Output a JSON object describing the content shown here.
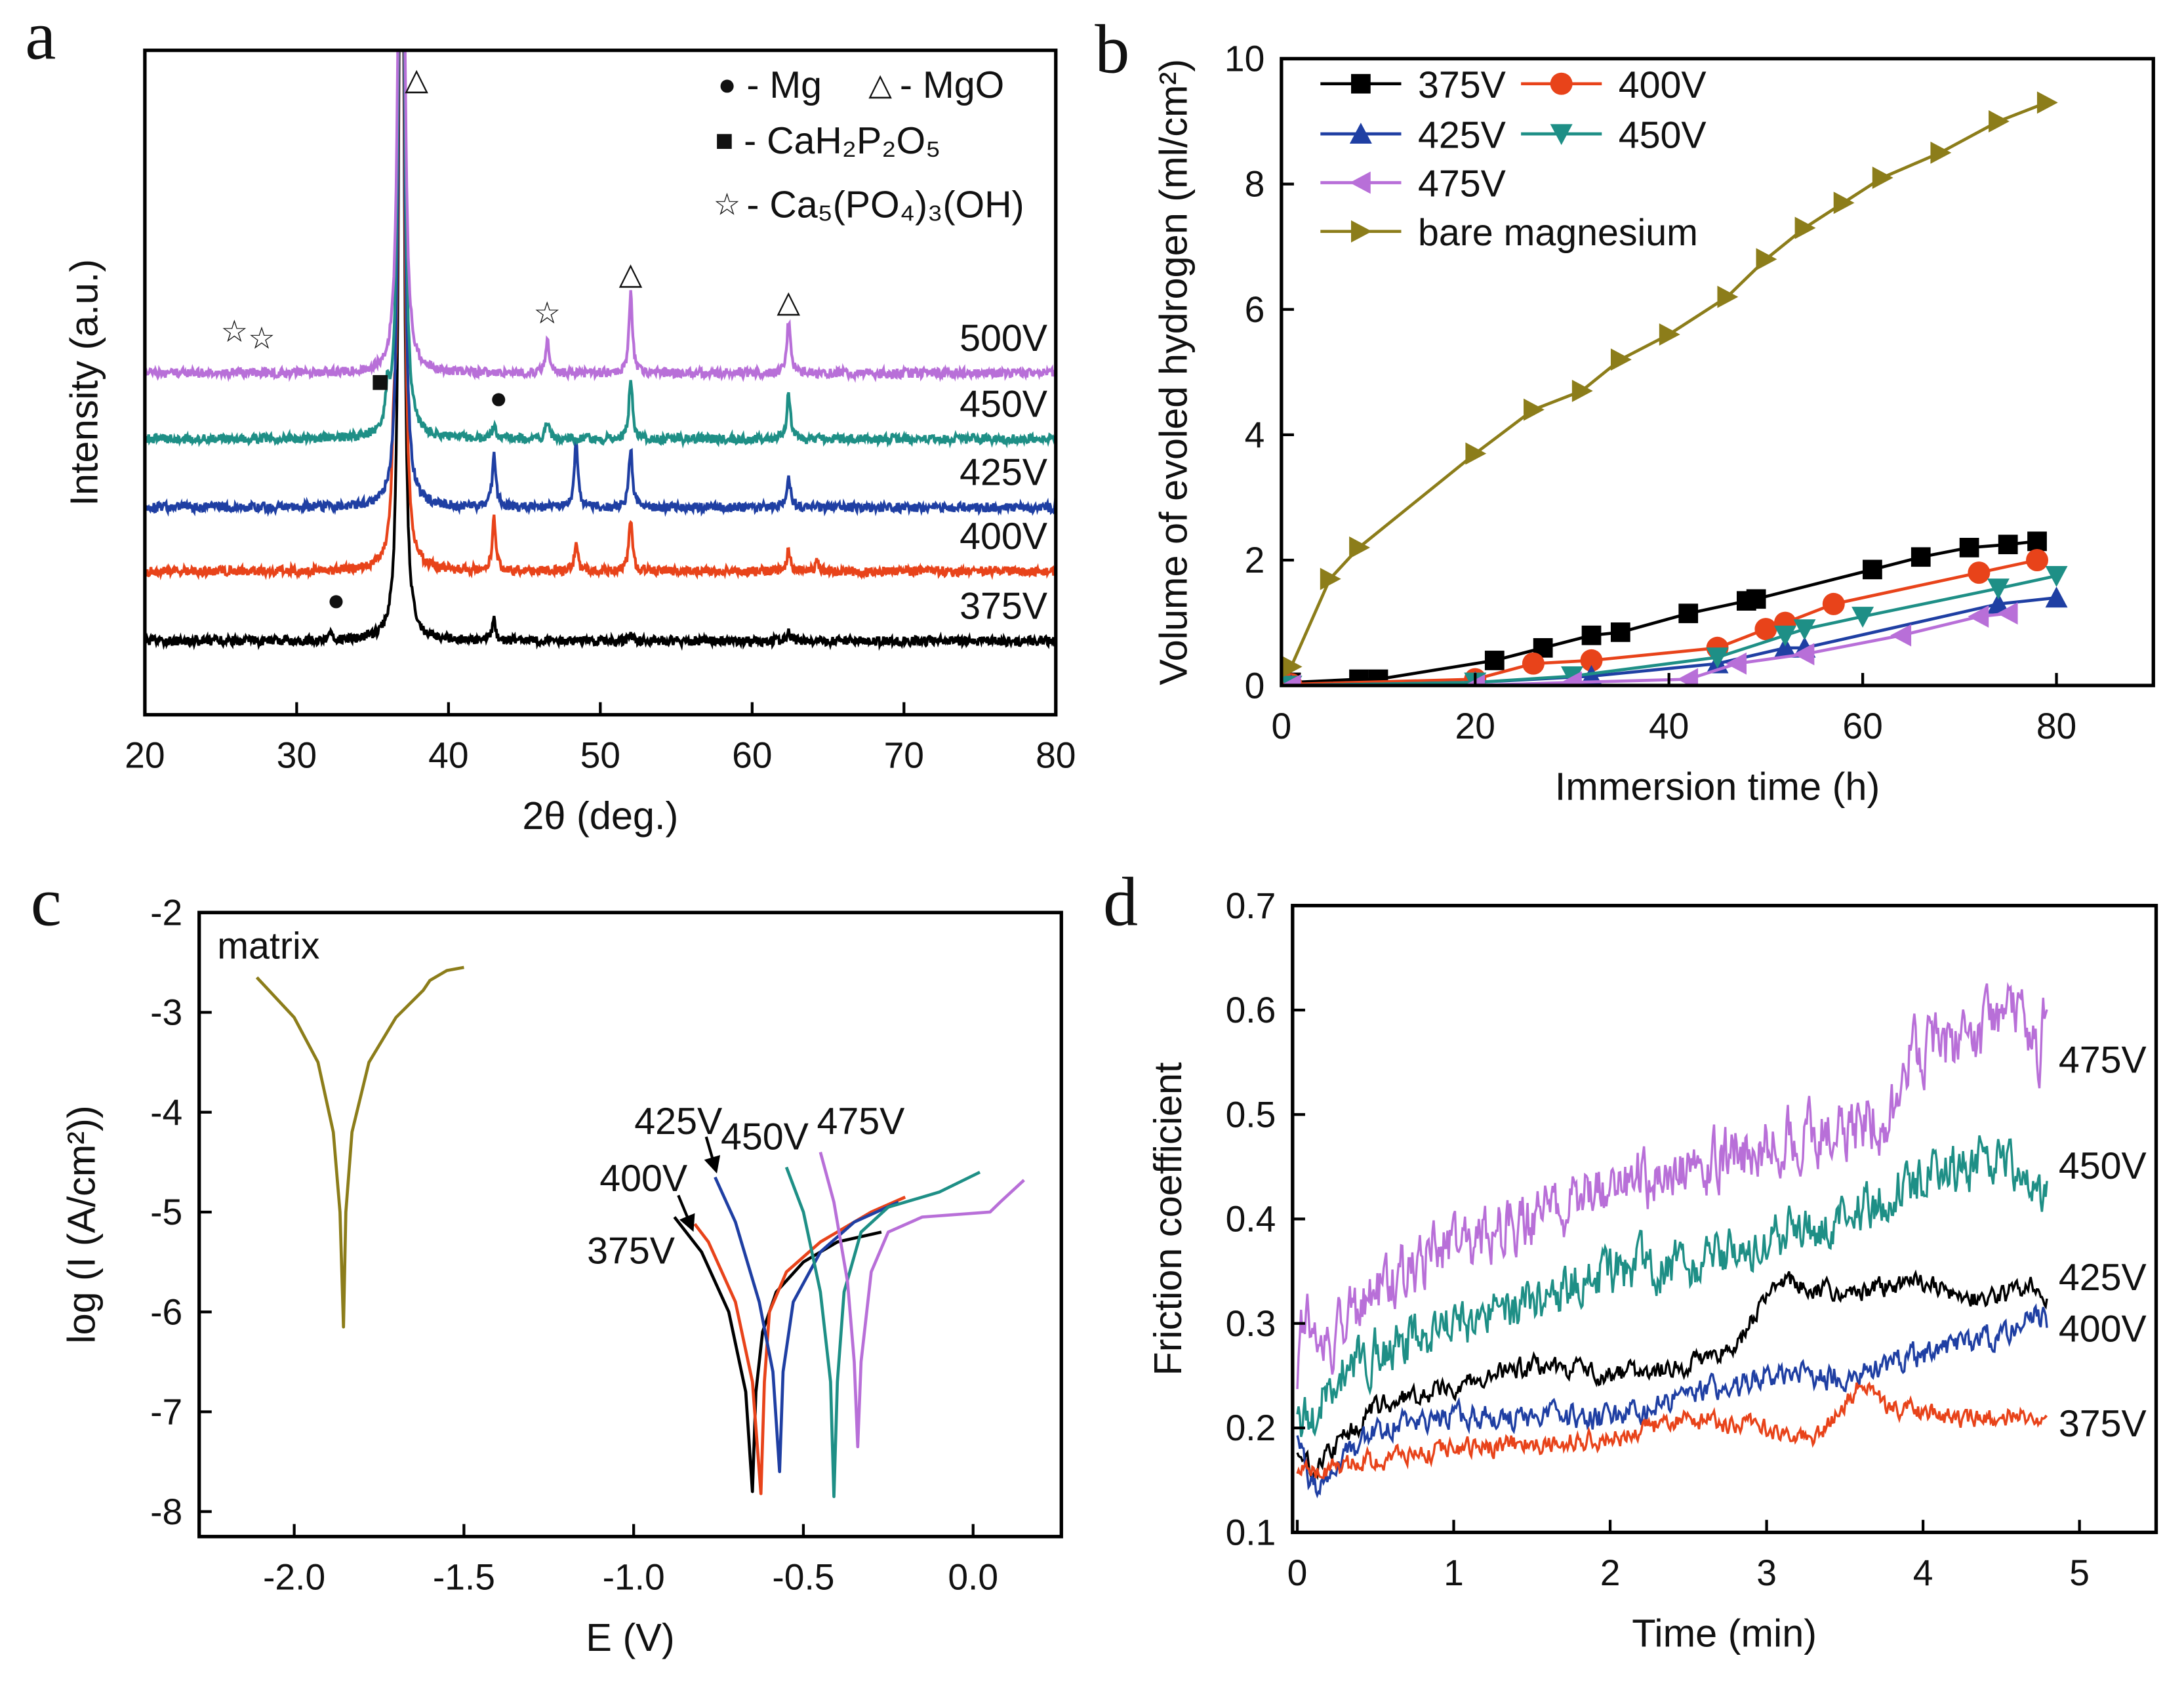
{
  "chart_data": [
    {
      "panel": "a",
      "type": "line",
      "xlabel": "2θ (deg.)",
      "ylabel": "Intensity (a.u.)",
      "xlim": [
        20,
        80
      ],
      "ylim": [
        0,
        100
      ],
      "xticks": [
        20,
        30,
        40,
        50,
        60,
        70,
        80
      ],
      "grid": false,
      "legend_placement": "top-right",
      "legend": [
        {
          "symbol": "circle",
          "glyph": "●",
          "label": "- Mg"
        },
        {
          "symbol": "triangle",
          "glyph": "△",
          "label": "- MgO"
        },
        {
          "symbol": "square",
          "glyph": "■",
          "label": "- CaH₂P₂O₅"
        },
        {
          "symbol": "star",
          "glyph": "☆",
          "label": "- Ca₅(PO₄)₃(OH)"
        }
      ],
      "series": [
        {
          "name": "375V",
          "color": "#000000",
          "baseline": 11.1,
          "peaks": [
            [
              32.2,
              1
            ],
            [
              36.9,
              200
            ],
            [
              43.0,
              3
            ],
            [
              52.0,
              1
            ],
            [
              62.4,
              1.5
            ]
          ]
        },
        {
          "name": "400V",
          "color": "#e8431a",
          "baseline": 21.6,
          "peaks": [
            [
              36.4,
              13
            ],
            [
              36.9,
              200
            ],
            [
              43.0,
              8
            ],
            [
              48.4,
              4
            ],
            [
              52.0,
              8
            ],
            [
              62.4,
              3
            ],
            [
              64.3,
              1.5
            ]
          ]
        },
        {
          "name": "425V",
          "color": "#1f3fa3",
          "baseline": 31.2,
          "peaks": [
            [
              36.9,
              200
            ],
            [
              43.0,
              8
            ],
            [
              48.4,
              10
            ],
            [
              52.0,
              9
            ],
            [
              62.4,
              5
            ]
          ]
        },
        {
          "name": "450V",
          "color": "#1e8f86",
          "baseline": 41.5,
          "peaks": [
            [
              36.0,
              6
            ],
            [
              36.9,
              200
            ],
            [
              43.0,
              2
            ],
            [
              46.5,
              2.5
            ],
            [
              52.0,
              9
            ],
            [
              62.4,
              7
            ]
          ]
        },
        {
          "name": "500V",
          "color": "#b86fd8",
          "baseline": 51.4,
          "peaks": [
            [
              36.9,
              200
            ],
            [
              46.5,
              5
            ],
            [
              52.0,
              12
            ],
            [
              62.4,
              8
            ]
          ]
        }
      ],
      "markers": [
        {
          "symbol": "star",
          "glyph": "☆",
          "x": 25.9,
          "y": 57.8
        },
        {
          "symbol": "star",
          "glyph": "☆",
          "x": 27.7,
          "y": 56.8
        },
        {
          "symbol": "star",
          "glyph": "☆",
          "x": 46.5,
          "y": 60.6
        },
        {
          "symbol": "triangle",
          "glyph": "△",
          "x": 37.9,
          "y": 95.8
        },
        {
          "symbol": "triangle",
          "glyph": "△",
          "x": 52.0,
          "y": 66.5
        },
        {
          "symbol": "triangle",
          "glyph": "△",
          "x": 62.4,
          "y": 62.3
        },
        {
          "symbol": "square",
          "glyph": "■",
          "x": 35.5,
          "y": 50.3
        },
        {
          "symbol": "circle",
          "glyph": "●",
          "x": 43.3,
          "y": 47.8
        },
        {
          "symbol": "circle",
          "glyph": "●",
          "x": 32.6,
          "y": 17.4
        }
      ]
    },
    {
      "panel": "b",
      "type": "line",
      "xlabel": "Immersion time (h)",
      "ylabel": "Volume of evoled hydrogen (ml/cm²)",
      "xlim": [
        0,
        90
      ],
      "ylim": [
        0,
        10
      ],
      "xticks": [
        0,
        20,
        40,
        60,
        80
      ],
      "yticks": [
        0,
        2,
        4,
        6,
        8,
        10
      ],
      "grid": false,
      "legend_placement": "top-left",
      "series": [
        {
          "name": "375V",
          "color": "#000000",
          "marker": "square",
          "x": [
            1,
            8,
            10,
            22,
            27,
            32,
            35,
            42,
            48,
            49,
            61,
            66,
            71,
            75,
            78
          ],
          "y": [
            0.05,
            0.1,
            0.1,
            0.4,
            0.6,
            0.8,
            0.85,
            1.15,
            1.35,
            1.38,
            1.85,
            2.05,
            2.2,
            2.25,
            2.3
          ]
        },
        {
          "name": "400V",
          "color": "#e8431a",
          "marker": "circle",
          "x": [
            1,
            20,
            26,
            32,
            45,
            50,
            52,
            57,
            72,
            78
          ],
          "y": [
            0.02,
            0.1,
            0.35,
            0.4,
            0.6,
            0.9,
            1.0,
            1.3,
            1.8,
            2.0
          ]
        },
        {
          "name": "425V",
          "color": "#1f3fa3",
          "marker": "triangle-up",
          "x": [
            1,
            20,
            32,
            45,
            52,
            54,
            74,
            80
          ],
          "y": [
            0.0,
            0.05,
            0.15,
            0.35,
            0.6,
            0.6,
            1.3,
            1.4
          ]
        },
        {
          "name": "450V",
          "color": "#1e8f86",
          "marker": "triangle-down",
          "x": [
            1,
            20,
            30,
            45,
            52,
            54,
            60,
            74,
            80
          ],
          "y": [
            0.0,
            0.05,
            0.15,
            0.45,
            0.8,
            0.9,
            1.1,
            1.55,
            1.75
          ]
        },
        {
          "name": "475V",
          "color": "#b86fd8",
          "marker": "triangle-left",
          "x": [
            1,
            20,
            30,
            42,
            47,
            54,
            64,
            72,
            75
          ],
          "y": [
            0.0,
            0.0,
            0.05,
            0.1,
            0.35,
            0.5,
            0.8,
            1.1,
            1.15
          ]
        },
        {
          "name": "bare magnesium",
          "color": "#8c7d1a",
          "marker": "triangle-right",
          "x": [
            1,
            5,
            8,
            20,
            26,
            31,
            35,
            40,
            46,
            50,
            54,
            58,
            62,
            68,
            74,
            79
          ],
          "y": [
            0.3,
            1.7,
            2.2,
            3.7,
            4.4,
            4.7,
            5.2,
            5.6,
            6.2,
            6.8,
            7.3,
            7.7,
            8.1,
            8.5,
            9.0,
            9.3
          ]
        }
      ]
    },
    {
      "panel": "c",
      "type": "line",
      "xlabel": "E (V)",
      "ylabel": "log (I (A/cm²))",
      "xlim": [
        -2.28,
        0.26
      ],
      "ylim": [
        -8.25,
        -2
      ],
      "xticks": [
        -2.0,
        -1.5,
        -1.0,
        -0.5,
        0.0
      ],
      "xtick_labels": [
        "-2.0",
        "-1.5",
        "-1.0",
        "-0.5",
        "0.0"
      ],
      "yticks": [
        -2,
        -3,
        -4,
        -5,
        -6,
        -7,
        -8
      ],
      "grid": false,
      "series": [
        {
          "name": "matrix",
          "color": "#8c7d1a",
          "points": [
            [
              -2.11,
              -2.65
            ],
            [
              -2.0,
              -3.05
            ],
            [
              -1.93,
              -3.5
            ],
            [
              -1.885,
              -4.2
            ],
            [
              -1.865,
              -5.0
            ],
            [
              -1.855,
              -6.15
            ],
            [
              -1.848,
              -5.0
            ],
            [
              -1.83,
              -4.2
            ],
            [
              -1.78,
              -3.5
            ],
            [
              -1.7,
              -3.05
            ],
            [
              -1.62,
              -2.78
            ],
            [
              -1.6,
              -2.68
            ],
            [
              -1.55,
              -2.58
            ],
            [
              -1.5,
              -2.55
            ]
          ]
        },
        {
          "name": "375V",
          "color": "#000000",
          "points": [
            [
              -0.88,
              -5.05
            ],
            [
              -0.8,
              -5.4
            ],
            [
              -0.72,
              -6.0
            ],
            [
              -0.67,
              -6.8
            ],
            [
              -0.65,
              -7.8
            ],
            [
              -0.64,
              -6.8
            ],
            [
              -0.62,
              -6.2
            ],
            [
              -0.58,
              -5.8
            ],
            [
              -0.5,
              -5.5
            ],
            [
              -0.4,
              -5.3
            ],
            [
              -0.27,
              -5.2
            ]
          ]
        },
        {
          "name": "400V",
          "color": "#e8431a",
          "points": [
            [
              -0.82,
              -5.12
            ],
            [
              -0.78,
              -5.3
            ],
            [
              -0.7,
              -5.9
            ],
            [
              -0.65,
              -6.7
            ],
            [
              -0.625,
              -7.82
            ],
            [
              -0.615,
              -6.7
            ],
            [
              -0.6,
              -6.0
            ],
            [
              -0.55,
              -5.6
            ],
            [
              -0.45,
              -5.3
            ],
            [
              -0.3,
              -5.0
            ],
            [
              -0.2,
              -4.85
            ]
          ]
        },
        {
          "name": "425V",
          "color": "#1f3fa3",
          "points": [
            [
              -0.76,
              -4.65
            ],
            [
              -0.7,
              -5.1
            ],
            [
              -0.63,
              -5.9
            ],
            [
              -0.59,
              -6.6
            ],
            [
              -0.57,
              -7.6
            ],
            [
              -0.56,
              -6.6
            ],
            [
              -0.53,
              -5.9
            ],
            [
              -0.45,
              -5.4
            ],
            [
              -0.35,
              -5.1
            ],
            [
              -0.22,
              -4.9
            ]
          ]
        },
        {
          "name": "450V",
          "color": "#1e8f86",
          "points": [
            [
              -0.55,
              -4.55
            ],
            [
              -0.5,
              -5.0
            ],
            [
              -0.45,
              -5.8
            ],
            [
              -0.42,
              -6.7
            ],
            [
              -0.41,
              -7.85
            ],
            [
              -0.4,
              -6.7
            ],
            [
              -0.38,
              -5.8
            ],
            [
              -0.33,
              -5.2
            ],
            [
              -0.25,
              -4.95
            ],
            [
              -0.1,
              -4.8
            ],
            [
              0.02,
              -4.6
            ]
          ]
        },
        {
          "name": "475V",
          "color": "#b86fd8",
          "points": [
            [
              -0.45,
              -4.4
            ],
            [
              -0.41,
              -4.9
            ],
            [
              -0.37,
              -5.7
            ],
            [
              -0.35,
              -6.5
            ],
            [
              -0.34,
              -7.35
            ],
            [
              -0.33,
              -6.5
            ],
            [
              -0.3,
              -5.6
            ],
            [
              -0.25,
              -5.2
            ],
            [
              -0.15,
              -5.05
            ],
            [
              0.05,
              -5.0
            ],
            [
              0.08,
              -4.9
            ],
            [
              0.15,
              -4.68
            ]
          ]
        }
      ]
    },
    {
      "panel": "d",
      "type": "line",
      "xlabel": "Time (min)",
      "ylabel": "Friction coefficient",
      "xlim": [
        -0.03,
        5.49
      ],
      "ylim": [
        0.1,
        0.7
      ],
      "xticks": [
        0,
        1,
        2,
        3,
        4,
        5
      ],
      "yticks": [
        0.1,
        0.2,
        0.3,
        0.4,
        0.5,
        0.6,
        0.7
      ],
      "grid": false,
      "series": [
        {
          "name": "475V",
          "color": "#b86fd8",
          "noise": 0.025,
          "trend": [
            [
              0,
              0.25
            ],
            [
              0.05,
              0.32
            ],
            [
              0.2,
              0.28
            ],
            [
              0.5,
              0.33
            ],
            [
              1,
              0.38
            ],
            [
              1.5,
              0.4
            ],
            [
              2,
              0.43
            ],
            [
              2.5,
              0.45
            ],
            [
              3,
              0.47
            ],
            [
              3.5,
              0.49
            ],
            [
              3.8,
              0.5
            ],
            [
              3.9,
              0.56
            ],
            [
              4.3,
              0.57
            ],
            [
              4.6,
              0.6
            ],
            [
              4.75,
              0.55
            ],
            [
              4.8,
              0.62
            ]
          ]
        },
        {
          "name": "450V",
          "color": "#1e8f86",
          "noise": 0.02,
          "trend": [
            [
              0,
              0.2
            ],
            [
              0.1,
              0.21
            ],
            [
              0.3,
              0.26
            ],
            [
              1,
              0.3
            ],
            [
              1.5,
              0.32
            ],
            [
              2,
              0.35
            ],
            [
              2.5,
              0.36
            ],
            [
              3,
              0.38
            ],
            [
              3.5,
              0.4
            ],
            [
              4,
              0.44
            ],
            [
              4.5,
              0.46
            ],
            [
              4.8,
              0.42
            ]
          ]
        },
        {
          "name": "425V",
          "color": "#000000",
          "noise": 0.008,
          "trend": [
            [
              0,
              0.18
            ],
            [
              0.1,
              0.16
            ],
            [
              0.5,
              0.22
            ],
            [
              1,
              0.24
            ],
            [
              1.5,
              0.26
            ],
            [
              2,
              0.25
            ],
            [
              2.5,
              0.26
            ],
            [
              2.8,
              0.28
            ],
            [
              3.1,
              0.34
            ],
            [
              3.5,
              0.33
            ],
            [
              4,
              0.34
            ],
            [
              4.4,
              0.32
            ],
            [
              4.7,
              0.34
            ],
            [
              4.8,
              0.32
            ]
          ]
        },
        {
          "name": "400V",
          "color": "#1f3fa3",
          "noise": 0.01,
          "trend": [
            [
              0,
              0.2
            ],
            [
              0.1,
              0.14
            ],
            [
              0.5,
              0.2
            ],
            [
              1,
              0.21
            ],
            [
              2,
              0.21
            ],
            [
              2.5,
              0.23
            ],
            [
              3,
              0.25
            ],
            [
              3.5,
              0.25
            ],
            [
              4,
              0.27
            ],
            [
              4.5,
              0.29
            ],
            [
              4.7,
              0.31
            ],
            [
              4.8,
              0.3
            ]
          ]
        },
        {
          "name": "375V",
          "color": "#e8431a",
          "noise": 0.008,
          "trend": [
            [
              0,
              0.16
            ],
            [
              0.2,
              0.16
            ],
            [
              0.5,
              0.17
            ],
            [
              1,
              0.18
            ],
            [
              2,
              0.19
            ],
            [
              2.5,
              0.21
            ],
            [
              3,
              0.2
            ],
            [
              3.3,
              0.19
            ],
            [
              3.6,
              0.24
            ],
            [
              3.8,
              0.22
            ],
            [
              4.2,
              0.21
            ],
            [
              4.8,
              0.21
            ]
          ]
        }
      ]
    }
  ]
}
